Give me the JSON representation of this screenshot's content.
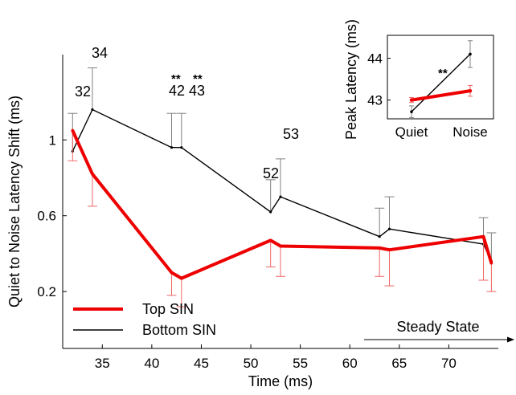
{
  "chart_data": [
    {
      "type": "line",
      "xlabel": "Time (ms)",
      "ylabel": "Quiet to Noise Latency Shift (ms)",
      "xlim": [
        31,
        75
      ],
      "ylim": [
        -0.1,
        1.45
      ],
      "xticks": [
        35,
        40,
        45,
        50,
        55,
        60,
        65,
        70
      ],
      "xtick_labels": [
        "35",
        "40",
        "45",
        "50",
        "55",
        "60",
        "65",
        "70"
      ],
      "yticks": [
        0.2,
        0.6,
        1
      ],
      "ytick_labels": [
        "0.2",
        "0.6",
        "1"
      ],
      "legend_position": "bottom-left",
      "series": [
        {
          "name": "Top SIN",
          "color": "#ee0000",
          "x": [
            32,
            34,
            42,
            43,
            52,
            53,
            63,
            64,
            73.5,
            74.3
          ],
          "y": [
            1.05,
            0.82,
            0.3,
            0.27,
            0.47,
            0.44,
            0.43,
            0.42,
            0.49,
            0.35
          ],
          "err": [
            0.16,
            0.17,
            0.12,
            0.15,
            0.14,
            0.16,
            0.15,
            0.19,
            0.23,
            0.15
          ]
        },
        {
          "name": "Bottom SIN",
          "color": "#000000",
          "x": [
            32,
            34,
            42,
            43,
            52,
            53,
            63,
            64,
            73.5,
            74.3
          ],
          "y": [
            0.94,
            1.16,
            0.96,
            0.96,
            0.62,
            0.7,
            0.49,
            0.53,
            0.45,
            0.36
          ],
          "err": [
            0.2,
            0.22,
            0.18,
            0.18,
            0.17,
            0.2,
            0.15,
            0.17,
            0.14,
            0.15
          ]
        }
      ],
      "annotations": [
        {
          "text": "32",
          "x": 32
        },
        {
          "text": "34",
          "x": 34
        },
        {
          "text": "42",
          "x": 42
        },
        {
          "text": "43",
          "x": 43
        },
        {
          "text": "52",
          "x": 52
        },
        {
          "text": "53",
          "x": 53
        }
      ],
      "significance_markers": [
        {
          "text": "**",
          "x": 42
        },
        {
          "text": "**",
          "x": 43
        }
      ],
      "arrow_label": "Steady State"
    },
    {
      "type": "line",
      "xlabel": "",
      "ylabel": "Peak Latency (ms)",
      "categories": [
        "Quiet",
        "Noise"
      ],
      "ylim": [
        42.55,
        44.55
      ],
      "yticks": [
        43,
        44
      ],
      "ytick_labels": [
        "43",
        "44"
      ],
      "series": [
        {
          "name": "Top SIN",
          "color": "#ee0000",
          "values": [
            43.0,
            43.22
          ],
          "err": [
            0.06,
            0.13
          ]
        },
        {
          "name": "Bottom SIN",
          "color": "#000000",
          "values": [
            42.72,
            44.1
          ],
          "err": [
            0.14,
            0.32
          ]
        }
      ],
      "significance_label": "**"
    }
  ]
}
